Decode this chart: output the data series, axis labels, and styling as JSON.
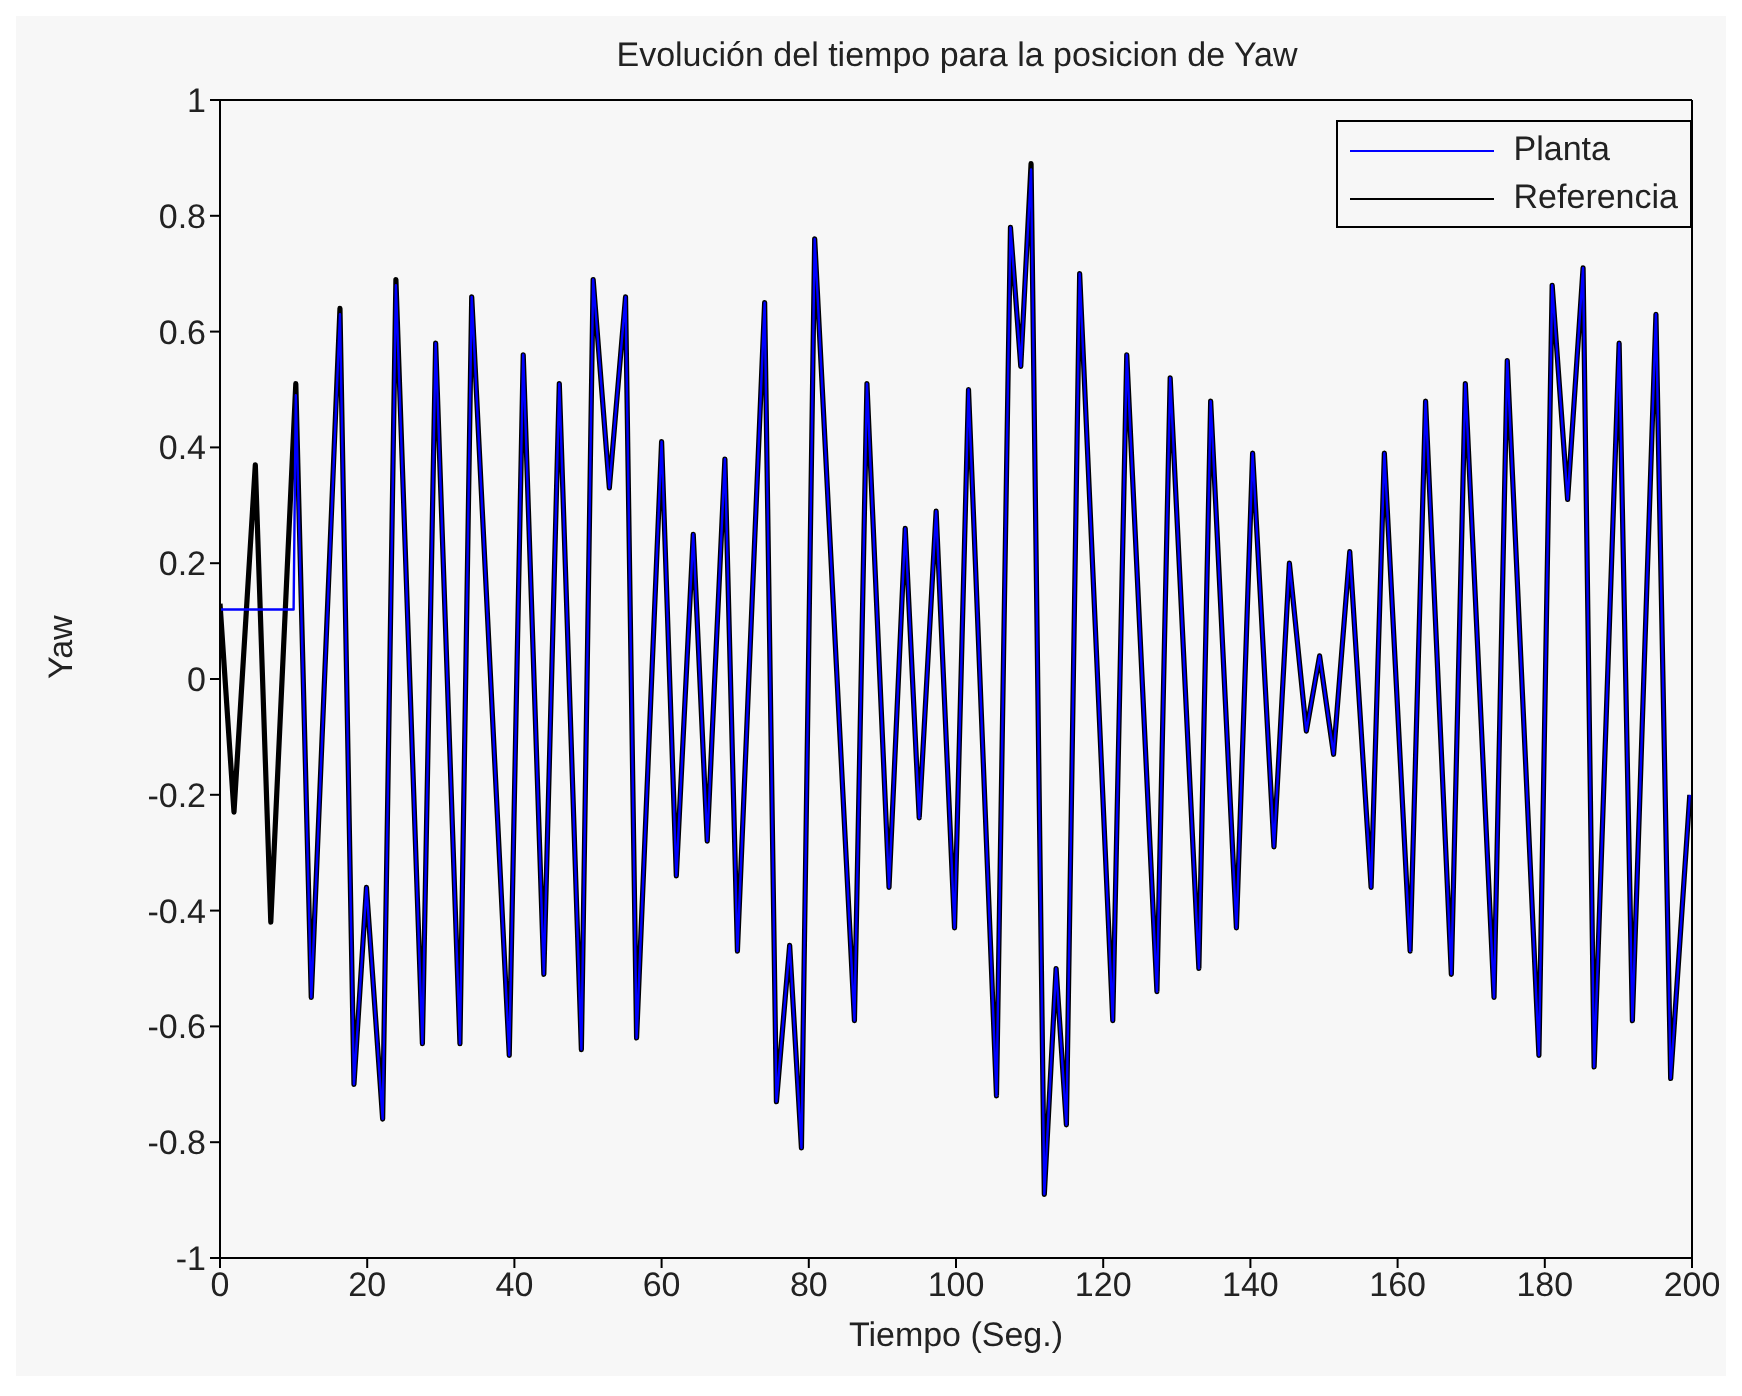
{
  "chart_data": {
    "type": "line",
    "title": "Evolución del tiempo para la posicion de Yaw",
    "xlabel": "Tiempo (Seg.)",
    "ylabel": "Yaw",
    "xlim": [
      0,
      200
    ],
    "xticks": [
      0,
      20,
      40,
      60,
      80,
      100,
      120,
      140,
      160,
      180,
      200
    ],
    "ylim": [
      -1,
      1
    ],
    "yticks": [
      -1,
      -0.8,
      -0.6,
      -0.4,
      -0.2,
      0,
      0.2,
      0.4,
      0.6,
      0.8,
      1
    ],
    "legend": "top right",
    "marker": "none",
    "line_style": "solid",
    "series": [
      {
        "name": "Planta",
        "color": "#0000ff",
        "x": [
          0,
          10,
          10.3,
          12.4,
          16.3,
          18.2,
          19.9,
          22.1,
          23.9,
          27.5,
          29.3,
          32.6,
          34.2,
          39.3,
          41.2,
          44,
          46.1,
          49.1,
          50.7,
          52.9,
          55.1,
          56.6,
          60,
          62,
          64.3,
          66.2,
          68.6,
          70.3,
          74,
          75.6,
          77.4,
          79,
          80.8,
          86.2,
          87.9,
          90.9,
          93.1,
          95,
          97.3,
          99.8,
          101.7,
          105.5,
          107.4,
          108.8,
          110.2,
          112,
          113.6,
          115,
          116.8,
          121.3,
          123.2,
          127.3,
          129.1,
          133,
          134.6,
          138.1,
          140.3,
          143.2,
          145.3,
          147.6,
          149.4,
          151.3,
          153.5,
          156.4,
          158.2,
          161.7,
          163.8,
          167.3,
          169.2,
          173.1,
          174.9,
          179.2,
          181,
          183.1,
          185.2,
          186.7,
          190.1,
          191.9,
          195.1,
          197.1,
          199.7
        ],
        "values": [
          0.12,
          0.12,
          0.49,
          -0.55,
          0.63,
          -0.7,
          -0.36,
          -0.76,
          0.68,
          -0.63,
          0.58,
          -0.63,
          0.66,
          -0.65,
          0.56,
          -0.51,
          0.51,
          -0.64,
          0.69,
          0.33,
          0.66,
          -0.62,
          0.41,
          -0.34,
          0.25,
          -0.28,
          0.38,
          -0.47,
          0.65,
          -0.73,
          -0.46,
          -0.81,
          0.76,
          -0.59,
          0.51,
          -0.36,
          0.26,
          -0.24,
          0.29,
          -0.43,
          0.5,
          -0.72,
          0.78,
          0.54,
          0.88,
          -0.89,
          -0.5,
          -0.77,
          0.7,
          -0.59,
          0.56,
          -0.54,
          0.52,
          -0.5,
          0.48,
          -0.43,
          0.39,
          -0.29,
          0.2,
          -0.09,
          0.04,
          -0.13,
          0.22,
          -0.36,
          0.39,
          -0.47,
          0.48,
          -0.51,
          0.51,
          -0.55,
          0.55,
          -0.65,
          0.68,
          0.31,
          0.71,
          -0.67,
          0.58,
          -0.59,
          0.63,
          -0.69,
          -0.2
        ]
      },
      {
        "name": "Referencia",
        "color": "#000000",
        "x": [
          0,
          1.9,
          4.8,
          6.9,
          10.3,
          12.4,
          16.3,
          18.2,
          19.9,
          22.1,
          23.9,
          27.5,
          29.3,
          32.6,
          34.2,
          39.3,
          41.2,
          44,
          46.1,
          49.1,
          50.7,
          52.9,
          55.1,
          56.6,
          60,
          62,
          64.3,
          66.2,
          68.6,
          70.3,
          74,
          75.6,
          77.4,
          79,
          80.8,
          86.2,
          87.9,
          90.9,
          93.1,
          95,
          97.3,
          99.8,
          101.7,
          105.5,
          107.4,
          108.8,
          110.2,
          112,
          113.6,
          115,
          116.8,
          121.3,
          123.2,
          127.3,
          129.1,
          133,
          134.6,
          138.1,
          140.3,
          143.2,
          145.3,
          147.6,
          149.4,
          151.3,
          153.5,
          156.4,
          158.2,
          161.7,
          163.8,
          167.3,
          169.2,
          173.1,
          174.9,
          179.2,
          181,
          183.1,
          185.2,
          186.7,
          190.1,
          191.9,
          195.1,
          197.1,
          199.7
        ],
        "values": [
          0.13,
          -0.23,
          0.37,
          -0.42,
          0.51,
          -0.55,
          0.64,
          -0.7,
          -0.36,
          -0.76,
          0.69,
          -0.63,
          0.58,
          -0.63,
          0.66,
          -0.65,
          0.56,
          -0.51,
          0.51,
          -0.64,
          0.69,
          0.33,
          0.66,
          -0.62,
          0.41,
          -0.34,
          0.25,
          -0.28,
          0.38,
          -0.47,
          0.65,
          -0.73,
          -0.46,
          -0.81,
          0.76,
          -0.59,
          0.51,
          -0.36,
          0.26,
          -0.24,
          0.29,
          -0.43,
          0.5,
          -0.72,
          0.78,
          0.54,
          0.89,
          -0.89,
          -0.5,
          -0.77,
          0.7,
          -0.59,
          0.56,
          -0.54,
          0.52,
          -0.5,
          0.48,
          -0.43,
          0.39,
          -0.29,
          0.2,
          -0.09,
          0.04,
          -0.13,
          0.22,
          -0.36,
          0.39,
          -0.47,
          0.48,
          -0.51,
          0.51,
          -0.55,
          0.55,
          -0.65,
          0.68,
          0.31,
          0.71,
          -0.67,
          0.58,
          -0.59,
          0.63,
          -0.69,
          -0.2
        ]
      }
    ]
  }
}
